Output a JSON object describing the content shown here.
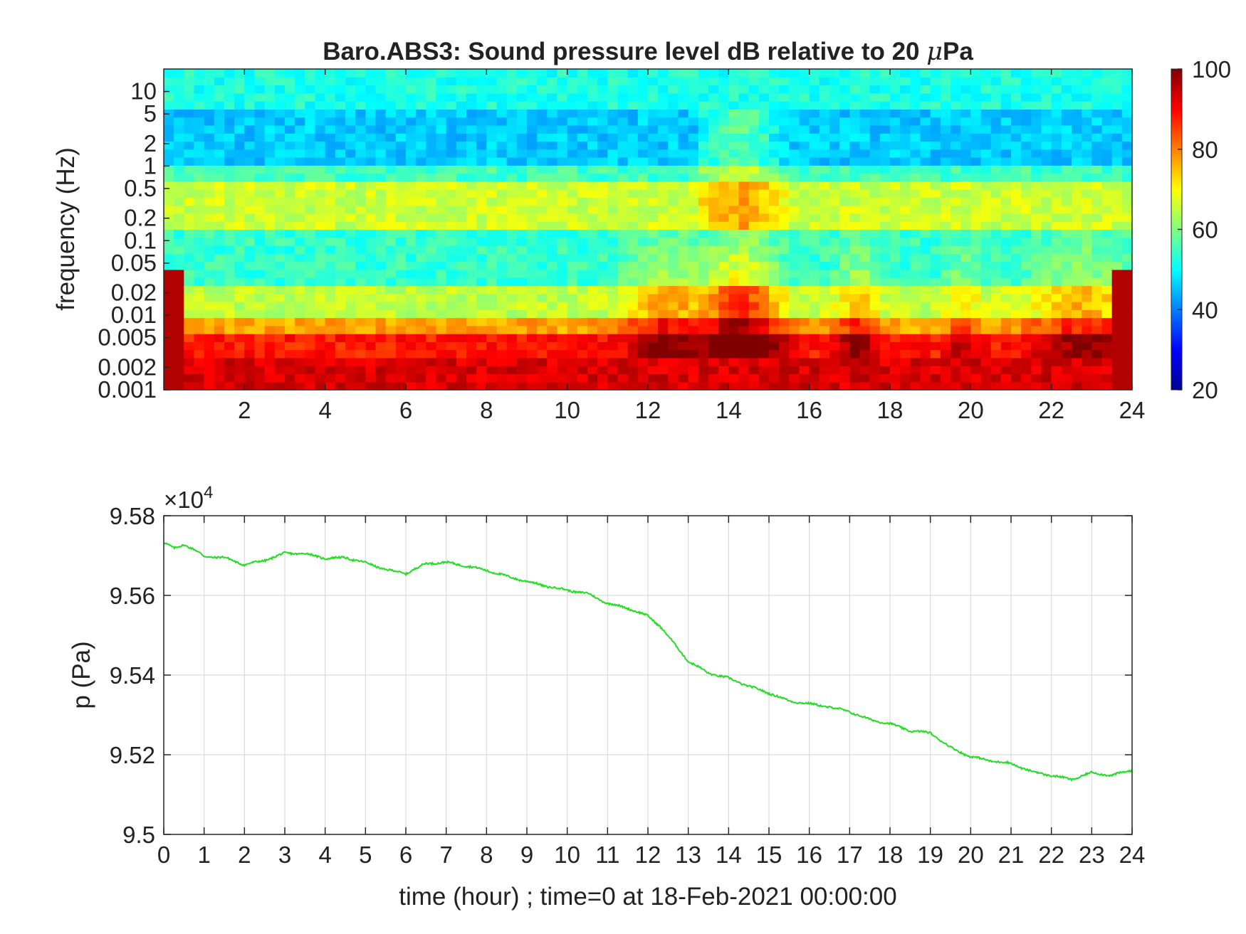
{
  "chart_data": [
    {
      "type": "heatmap",
      "title_main": "Baro.ABS3: Sound pressure level dB relative to 20 ",
      "title_mu": "μ",
      "title_tail": "Pa",
      "ylabel": "frequency (Hz)",
      "x_range": [
        0,
        24
      ],
      "x_ticks": [
        2,
        4,
        6,
        8,
        10,
        12,
        14,
        16,
        18,
        20,
        22,
        24
      ],
      "y_scale": "log",
      "y_range": [
        0.001,
        20
      ],
      "y_ticks": [
        0.001,
        0.002,
        0.005,
        0.01,
        0.02,
        0.05,
        0.1,
        0.2,
        0.5,
        1,
        2,
        5,
        10
      ],
      "y_tick_labels": [
        "0.001",
        "0.002",
        "0.005",
        "0.01",
        "0.02",
        "0.05",
        "0.1",
        "0.2",
        "0.5",
        "1",
        "2",
        "5",
        "10"
      ],
      "colorbar": {
        "range": [
          20,
          100
        ],
        "ticks": [
          20,
          40,
          60,
          80,
          100
        ],
        "colormap": "jet"
      },
      "description_bands": [
        {
          "f_range": [
            0.001,
            0.003
          ],
          "db_approx": 92
        },
        {
          "f_range": [
            0.003,
            0.01
          ],
          "db_approx": 78
        },
        {
          "f_range": [
            0.01,
            0.15
          ],
          "db_approx": 55
        },
        {
          "f_range": [
            0.15,
            0.7
          ],
          "db_approx": 66
        },
        {
          "f_range": [
            0.7,
            5
          ],
          "db_approx": 45
        },
        {
          "f_range": [
            5,
            20
          ],
          "db_approx": 52
        }
      ],
      "active_periods_hours": [
        [
          11.8,
          13.2
        ],
        [
          13.2,
          15.4
        ],
        [
          16.8,
          17.8
        ],
        [
          19.5,
          20.2
        ],
        [
          21.5,
          24
        ]
      ]
    },
    {
      "type": "line",
      "ylabel": "p (Pa)",
      "xlabel": "time (hour) ; time=0 at 18-Feb-2021 00:00:00",
      "y_exponent_label": "×10",
      "y_exponent_power": "4",
      "x_range": [
        0,
        24
      ],
      "y_range": [
        9.5,
        9.58
      ],
      "x_ticks": [
        0,
        1,
        2,
        3,
        4,
        5,
        6,
        7,
        8,
        9,
        10,
        11,
        12,
        13,
        14,
        15,
        16,
        17,
        18,
        19,
        20,
        21,
        22,
        23,
        24
      ],
      "y_ticks": [
        9.5,
        9.52,
        9.54,
        9.56,
        9.58
      ],
      "y_tick_labels": [
        "9.5",
        "9.52",
        "9.54",
        "9.56",
        "9.58"
      ],
      "grid": true,
      "line_color": "#22dd22",
      "series": [
        {
          "x": [
            0,
            0.25,
            0.5,
            0.75,
            1,
            1.5,
            2,
            2.5,
            3,
            3.5,
            4,
            4.5,
            5,
            5.5,
            6,
            6.5,
            7,
            7.5,
            8,
            8.5,
            9,
            9.5,
            10,
            10.5,
            11,
            11.5,
            12,
            12.3,
            12.6,
            13,
            13.5,
            14,
            14.5,
            15,
            15.5,
            16,
            16.5,
            17,
            17.5,
            18,
            18.5,
            19,
            19.5,
            20,
            20.5,
            21,
            21.5,
            22,
            22.5,
            23,
            23.5,
            24
          ],
          "y": [
            9.5733,
            9.5718,
            9.5728,
            9.5715,
            9.5698,
            9.5695,
            9.5677,
            9.5688,
            9.5706,
            9.5705,
            9.5693,
            9.5695,
            9.5682,
            9.5665,
            9.5655,
            9.568,
            9.5683,
            9.5674,
            9.5663,
            9.5648,
            9.5635,
            9.5623,
            9.5613,
            9.5605,
            9.558,
            9.5568,
            9.5548,
            9.5523,
            9.5485,
            9.5435,
            9.5405,
            9.5392,
            9.5372,
            9.5355,
            9.5335,
            9.5328,
            9.532,
            9.5308,
            9.5288,
            9.5278,
            9.526,
            9.5255,
            9.5218,
            9.5195,
            9.5185,
            9.5178,
            9.5158,
            9.5148,
            9.5138,
            9.5155,
            9.5148,
            9.5162
          ]
        }
      ]
    }
  ]
}
